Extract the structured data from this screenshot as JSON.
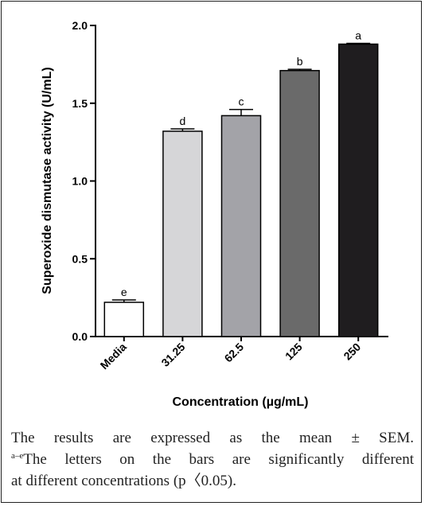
{
  "chart_data": {
    "type": "bar",
    "categories": [
      "Media",
      "31.25",
      "62.5",
      "125",
      "250"
    ],
    "values": [
      0.22,
      1.32,
      1.42,
      1.71,
      1.88
    ],
    "errors": [
      0.015,
      0.015,
      0.04,
      0.008,
      0.005
    ],
    "significance_letters": [
      "e",
      "d",
      "c",
      "b",
      "a"
    ],
    "bar_colors": [
      "#ffffff",
      "#d6d6d8",
      "#a3a3a8",
      "#6a6a6a",
      "#1f1d1f"
    ],
    "ylabel": "Superoxide dismutase activity (U/mL)",
    "xlabel": "Concentration (µg/mL)",
    "ylim": [
      0.0,
      2.0
    ],
    "yticks": [
      "0.0",
      "0.5",
      "1.0",
      "1.5",
      "2.0"
    ],
    "grid": false
  },
  "caption": {
    "line1": "The results are expressed as the mean ± SEM.",
    "sup": "a–e",
    "line2": "The letters on the bars are significantly different",
    "line3": "at different concentrations (p〈0.05)."
  }
}
